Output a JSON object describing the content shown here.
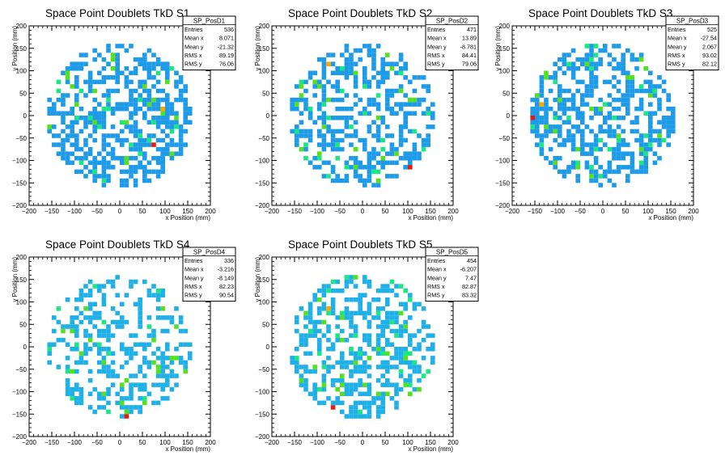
{
  "chart_data": [
    {
      "type": "heatmap",
      "title": "Space Point Doublets TkD S1",
      "xlabel": "x Position (mm)",
      "ylabel": "y Position (mm)",
      "xlim": [
        -200,
        200
      ],
      "ylim": [
        -200,
        200
      ],
      "xticks": [
        -200,
        -150,
        -100,
        -50,
        0,
        50,
        100,
        150,
        200
      ],
      "yticks": [
        -200,
        -150,
        -100,
        -50,
        0,
        50,
        100,
        150,
        200
      ],
      "stats": {
        "name": "SP_PosD1",
        "rows": [
          {
            "label": "Entries",
            "value": "536"
          },
          {
            "label": "Mean x",
            "value": "8.071"
          },
          {
            "label": "Mean y",
            "value": "-21.32"
          },
          {
            "label": "RMS x",
            "value": "89.19"
          },
          {
            "label": "RMS y",
            "value": "76.06"
          }
        ]
      },
      "disk_radius": 160,
      "bin_size": 10,
      "occupancy": 0.52,
      "seed": 11,
      "hotspots": [
        {
          "x": 75,
          "y": -70,
          "level": "red"
        },
        {
          "x": 90,
          "y": 15,
          "level": "orange"
        },
        {
          "x": 70,
          "y": 30,
          "level": "green"
        },
        {
          "x": -60,
          "y": -20,
          "level": "green"
        },
        {
          "x": -20,
          "y": 130,
          "level": "green"
        },
        {
          "x": -100,
          "y": 20,
          "level": "green"
        },
        {
          "x": 120,
          "y": -10,
          "level": "green"
        }
      ]
    },
    {
      "type": "heatmap",
      "title": "Space Point Doublets TkD S2",
      "xlabel": "x Position (mm)",
      "ylabel": "y Position (mm)",
      "xlim": [
        -200,
        200
      ],
      "ylim": [
        -200,
        200
      ],
      "xticks": [
        -200,
        -150,
        -100,
        -50,
        0,
        50,
        100,
        150,
        200
      ],
      "yticks": [
        -200,
        -150,
        -100,
        -50,
        0,
        50,
        100,
        150,
        200
      ],
      "stats": {
        "name": "SP_PosD2",
        "rows": [
          {
            "label": "Entries",
            "value": "471"
          },
          {
            "label": "Mean x",
            "value": "13.89"
          },
          {
            "label": "Mean y",
            "value": "-8.781"
          },
          {
            "label": "RMS x",
            "value": "84.41"
          },
          {
            "label": "RMS y",
            "value": "79.06"
          }
        ]
      },
      "disk_radius": 160,
      "bin_size": 10,
      "occupancy": 0.47,
      "seed": 23,
      "hotspots": [
        {
          "x": 100,
          "y": -120,
          "level": "red"
        },
        {
          "x": -80,
          "y": 110,
          "level": "orange"
        },
        {
          "x": 50,
          "y": 130,
          "level": "green"
        },
        {
          "x": -100,
          "y": -90,
          "level": "green"
        },
        {
          "x": 30,
          "y": -150,
          "level": "green"
        }
      ]
    },
    {
      "type": "heatmap",
      "title": "Space Point Doublets TkD S3",
      "xlabel": "x Position (mm)",
      "ylabel": "y Position (mm)",
      "xlim": [
        -200,
        200
      ],
      "ylim": [
        -200,
        200
      ],
      "xticks": [
        -200,
        -150,
        -100,
        -50,
        0,
        50,
        100,
        150,
        200
      ],
      "yticks": [
        -200,
        -150,
        -100,
        -50,
        0,
        50,
        100,
        150,
        200
      ],
      "stats": {
        "name": "SP_PosD3",
        "rows": [
          {
            "label": "Entries",
            "value": "525"
          },
          {
            "label": "Mean x",
            "value": "-27.54"
          },
          {
            "label": "Mean y",
            "value": "2.067"
          },
          {
            "label": "RMS x",
            "value": "93.02"
          },
          {
            "label": "RMS y",
            "value": "82.12"
          }
        ]
      },
      "disk_radius": 160,
      "bin_size": 10,
      "occupancy": 0.5,
      "seed": 37,
      "hotspots": [
        {
          "x": -155,
          "y": -5,
          "level": "red"
        },
        {
          "x": -140,
          "y": 20,
          "level": "orange"
        },
        {
          "x": -130,
          "y": -30,
          "level": "green"
        },
        {
          "x": -145,
          "y": 40,
          "level": "green"
        },
        {
          "x": 80,
          "y": 120,
          "level": "green"
        },
        {
          "x": -60,
          "y": -120,
          "level": "green"
        }
      ]
    },
    {
      "type": "heatmap",
      "title": "Space Point Doublets TkD S4",
      "xlabel": "x Position (mm)",
      "ylabel": "y Position (mm)",
      "xlim": [
        -200,
        200
      ],
      "ylim": [
        -200,
        200
      ],
      "xticks": [
        -200,
        -150,
        -100,
        -50,
        0,
        50,
        100,
        150,
        200
      ],
      "yticks": [
        -200,
        -150,
        -100,
        -50,
        0,
        50,
        100,
        150,
        200
      ],
      "stats": {
        "name": "SP_PosD4",
        "rows": [
          {
            "label": "Entries",
            "value": "336"
          },
          {
            "label": "Mean x",
            "value": "-3.216"
          },
          {
            "label": "Mean y",
            "value": "-8.149"
          },
          {
            "label": "RMS x",
            "value": "82.23"
          },
          {
            "label": "RMS y",
            "value": "90.54"
          }
        ]
      },
      "disk_radius": 160,
      "bin_size": 10,
      "occupancy": 0.36,
      "seed": 41,
      "hotspots": [
        {
          "x": 10,
          "y": -155,
          "level": "red"
        },
        {
          "x": -110,
          "y": -60,
          "level": "green"
        },
        {
          "x": 0,
          "y": -130,
          "level": "green"
        },
        {
          "x": 120,
          "y": 40,
          "level": "green"
        }
      ]
    },
    {
      "type": "heatmap",
      "title": "Space Point Doublets TkD S5",
      "xlabel": "x Position (mm)",
      "ylabel": "y Position (mm)",
      "xlim": [
        -200,
        200
      ],
      "ylim": [
        -200,
        200
      ],
      "xticks": [
        -200,
        -150,
        -100,
        -50,
        0,
        50,
        100,
        150,
        200
      ],
      "yticks": [
        -200,
        -150,
        -100,
        -50,
        0,
        50,
        100,
        150,
        200
      ],
      "stats": {
        "name": "SP_PosD5",
        "rows": [
          {
            "label": "Entries",
            "value": "454"
          },
          {
            "label": "Mean x",
            "value": "-6.207"
          },
          {
            "label": "Mean y",
            "value": "7.47"
          },
          {
            "label": "RMS x",
            "value": "82.87"
          },
          {
            "label": "RMS y",
            "value": "83.32"
          }
        ]
      },
      "disk_radius": 160,
      "bin_size": 10,
      "occupancy": 0.45,
      "seed": 59,
      "hotspots": [
        {
          "x": -65,
          "y": -140,
          "level": "red"
        },
        {
          "x": -75,
          "y": 80,
          "level": "orange"
        },
        {
          "x": -60,
          "y": -100,
          "level": "green"
        },
        {
          "x": -20,
          "y": 150,
          "level": "green"
        },
        {
          "x": 90,
          "y": -30,
          "level": "green"
        }
      ]
    }
  ],
  "colors": {
    "low": "#1e9be8",
    "low_alt": "#20b0e8",
    "mid": "#19e882",
    "green": "#55e01e",
    "orange": "#ffa500",
    "red": "#e8190f"
  }
}
